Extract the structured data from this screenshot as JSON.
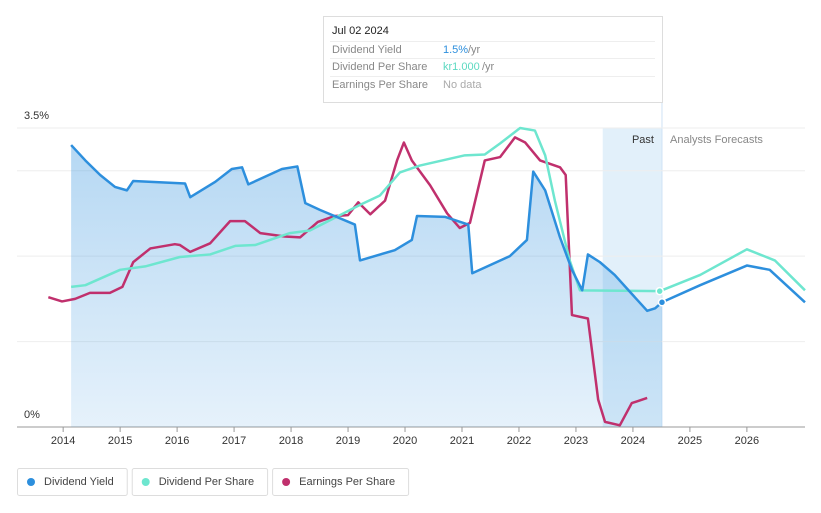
{
  "chart_data": {
    "type": "line",
    "xlim": [
      2013.19,
      2027.02
    ],
    "xticks": [
      2014,
      2015,
      2016,
      2017,
      2018,
      2019,
      2020,
      2021,
      2022,
      2023,
      2024,
      2025,
      2026
    ],
    "ylim": [
      0,
      3.5
    ],
    "yticks": [
      {
        "value": 0,
        "label": "0%"
      },
      {
        "value": 1,
        "label": null
      },
      {
        "value": 2,
        "label": null
      },
      {
        "value": 3,
        "label": null
      },
      {
        "value": 3.5,
        "label": "3.5%"
      }
    ],
    "grid": true,
    "past_region": [
      2023.47,
      2024.51
    ],
    "past_label": "Past",
    "forecast_label": "Analysts Forecasts",
    "tooltip": {
      "date": "Jul 02 2024",
      "rows": [
        {
          "label": "Dividend Yield",
          "value": "1.5%",
          "unit": "/yr"
        },
        {
          "label": "Dividend Per Share",
          "value": "kr1.000",
          "unit": "/yr"
        },
        {
          "label": "Earnings Per Share",
          "value": "No data"
        }
      ]
    },
    "series": [
      {
        "name": "Dividend Yield",
        "color": "#2d8fdd",
        "x": [
          2014.14,
          2014.39,
          2014.65,
          2014.91,
          2015.12,
          2015.23,
          2016.14,
          2016.23,
          2016.67,
          2016.96,
          2017.14,
          2017.25,
          2017.84,
          2018.11,
          2018.25,
          2018.51,
          2019.12,
          2019.21,
          2019.82,
          2020.12,
          2020.21,
          2020.7,
          2021.11,
          2021.18,
          2021.84,
          2022.14,
          2022.25,
          2022.46,
          2022.72,
          2022.93,
          2023.11,
          2023.21,
          2023.42,
          2023.68,
          2023.95,
          2024.25,
          2024.39,
          2024.51,
          2025.18,
          2026.0,
          2026.4,
          2027.02
        ],
        "values": [
          3.3,
          3.12,
          2.95,
          2.81,
          2.77,
          2.88,
          2.85,
          2.69,
          2.87,
          3.02,
          3.04,
          2.84,
          3.02,
          3.05,
          2.62,
          2.54,
          2.37,
          1.95,
          2.07,
          2.19,
          2.47,
          2.46,
          2.37,
          1.8,
          2.0,
          2.19,
          2.99,
          2.77,
          2.22,
          1.84,
          1.6,
          2.02,
          1.93,
          1.78,
          1.58,
          1.36,
          1.39,
          1.46,
          1.66,
          1.89,
          1.84,
          1.46
        ]
      },
      {
        "name": "Dividend Per Share",
        "color": "#6ee6cf",
        "x": [
          2014.14,
          2014.39,
          2015.0,
          2015.44,
          2016.05,
          2016.58,
          2017.02,
          2017.37,
          2017.98,
          2018.33,
          2018.86,
          2019.21,
          2019.56,
          2019.91,
          2020.26,
          2021.05,
          2021.4,
          2021.67,
          2022.02,
          2022.28,
          2022.46,
          2022.63,
          2022.89,
          2023.07,
          2024.47,
          2025.18,
          2026.0,
          2026.49,
          2027.02
        ],
        "values": [
          1.64,
          1.66,
          1.84,
          1.88,
          1.99,
          2.02,
          2.12,
          2.13,
          2.27,
          2.3,
          2.48,
          2.6,
          2.71,
          2.98,
          3.06,
          3.18,
          3.19,
          3.32,
          3.5,
          3.47,
          3.18,
          2.65,
          1.95,
          1.6,
          1.59,
          1.78,
          2.08,
          1.95,
          1.6
        ]
      },
      {
        "name": "Earnings Per Share",
        "color": "#c0306d",
        "x": [
          2013.74,
          2013.98,
          2014.21,
          2014.47,
          2014.82,
          2015.04,
          2015.23,
          2015.53,
          2015.96,
          2016.05,
          2016.23,
          2016.58,
          2016.93,
          2017.19,
          2017.46,
          2017.89,
          2018.16,
          2018.47,
          2018.77,
          2019.0,
          2019.18,
          2019.39,
          2019.65,
          2019.86,
          2019.98,
          2020.12,
          2020.44,
          2020.74,
          2020.96,
          2021.14,
          2021.4,
          2021.67,
          2021.93,
          2022.11,
          2022.37,
          2022.72,
          2022.82,
          2022.93,
          2023.21,
          2023.39,
          2023.51,
          2023.77,
          2023.98,
          2024.25
        ],
        "values": [
          1.52,
          1.47,
          1.5,
          1.57,
          1.57,
          1.64,
          1.93,
          2.09,
          2.14,
          2.13,
          2.05,
          2.15,
          2.41,
          2.41,
          2.27,
          2.23,
          2.22,
          2.4,
          2.47,
          2.48,
          2.63,
          2.49,
          2.65,
          3.12,
          3.33,
          3.12,
          2.83,
          2.5,
          2.33,
          2.39,
          3.12,
          3.16,
          3.39,
          3.33,
          3.12,
          3.04,
          2.95,
          1.31,
          1.27,
          0.32,
          0.06,
          0.02,
          0.28,
          0.34
        ]
      }
    ]
  }
}
